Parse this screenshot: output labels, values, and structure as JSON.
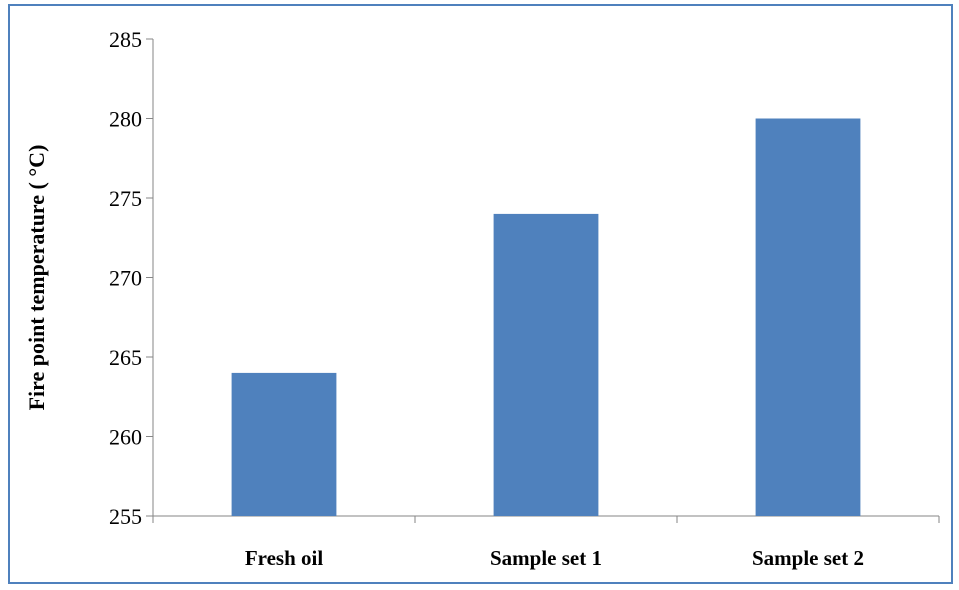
{
  "chart_data": {
    "type": "bar",
    "title": "",
    "xlabel": "",
    "ylabel": "Fire point temperature ( °C)",
    "categories": [
      "Fresh oil",
      "Sample set 1",
      "Sample set 2"
    ],
    "values": [
      264,
      274,
      280
    ],
    "ylim": [
      255,
      285
    ],
    "yticks": [
      255,
      260,
      265,
      270,
      275,
      280,
      285
    ],
    "grid": false,
    "legend": "none",
    "bar_color": "#4f81bd",
    "frame_color": "#4f81bd",
    "axis_color": "#868686"
  }
}
